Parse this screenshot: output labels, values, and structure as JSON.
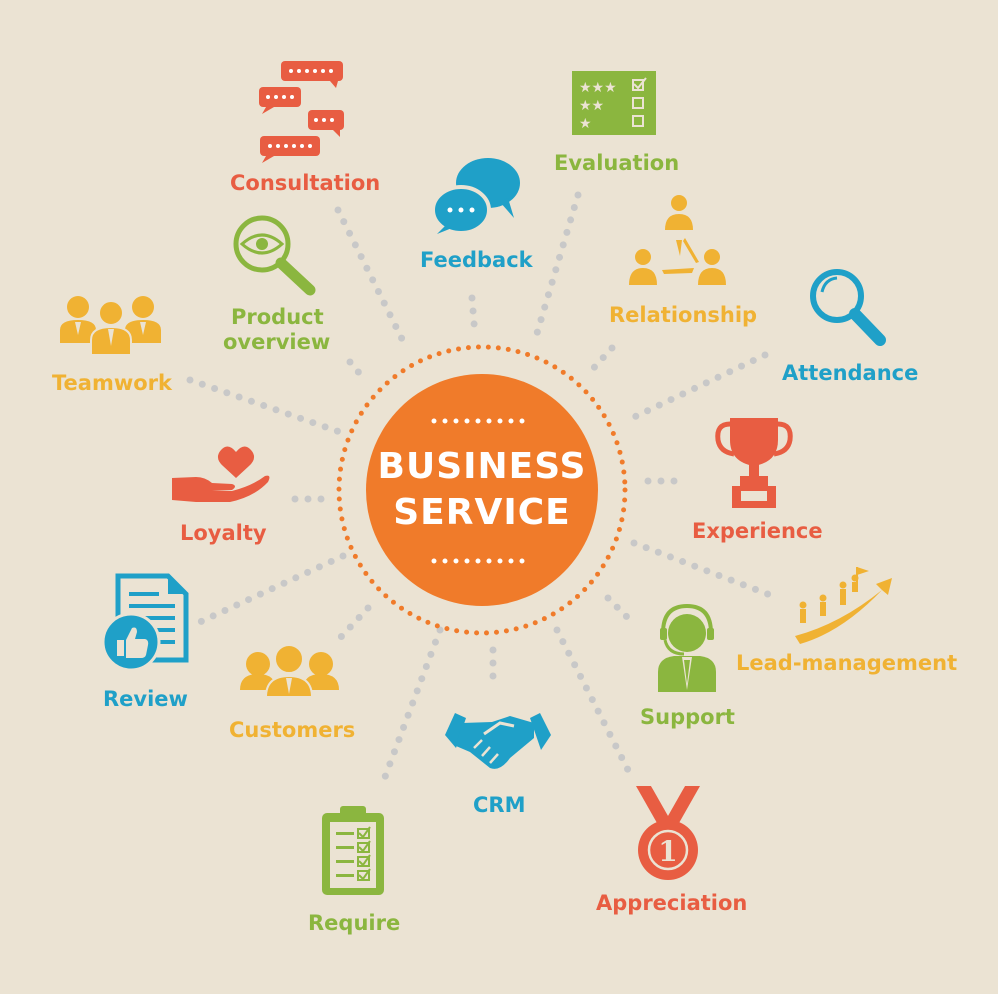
{
  "center": {
    "line1": "BUSINESS",
    "line2": "SERVICE"
  },
  "colors": {
    "background": "#ebe3d3",
    "orange": "#f07b2a",
    "red": "#e85d42",
    "green": "#8bb63f",
    "blue": "#1fa0c8",
    "yellow": "#f0b233",
    "dots": "#c8c8c8"
  },
  "items": {
    "consultation": {
      "label": "Consultation",
      "icon": "chat-bubbles-icon"
    },
    "feedback": {
      "label": "Feedback",
      "icon": "speech-bubbles-icon"
    },
    "evaluation": {
      "label": "Evaluation",
      "icon": "rating-checklist-icon"
    },
    "relationship": {
      "label": "Relationship",
      "icon": "people-network-icon"
    },
    "attendance": {
      "label": "Attendance",
      "icon": "magnifier-icon"
    },
    "experience": {
      "label": "Experience",
      "icon": "trophy-icon"
    },
    "lead_management": {
      "label": "Lead-management",
      "icon": "climbing-arrow-icon"
    },
    "support": {
      "label": "Support",
      "icon": "headset-agent-icon"
    },
    "appreciation": {
      "label": "Appreciation",
      "icon": "medal-icon"
    },
    "crm": {
      "label": "CRM",
      "icon": "handshake-icon"
    },
    "require": {
      "label": "Require",
      "icon": "clipboard-checklist-icon"
    },
    "customers": {
      "label": "Customers",
      "icon": "people-group-icon"
    },
    "review": {
      "label": "Review",
      "icon": "document-thumbs-up-icon"
    },
    "loyalty": {
      "label": "Loyalty",
      "icon": "hand-heart-icon"
    },
    "teamwork": {
      "label": "Teamwork",
      "icon": "team-icon"
    },
    "product_overview": {
      "line1": "Product",
      "line2": "overview",
      "icon": "eye-magnifier-icon"
    }
  }
}
